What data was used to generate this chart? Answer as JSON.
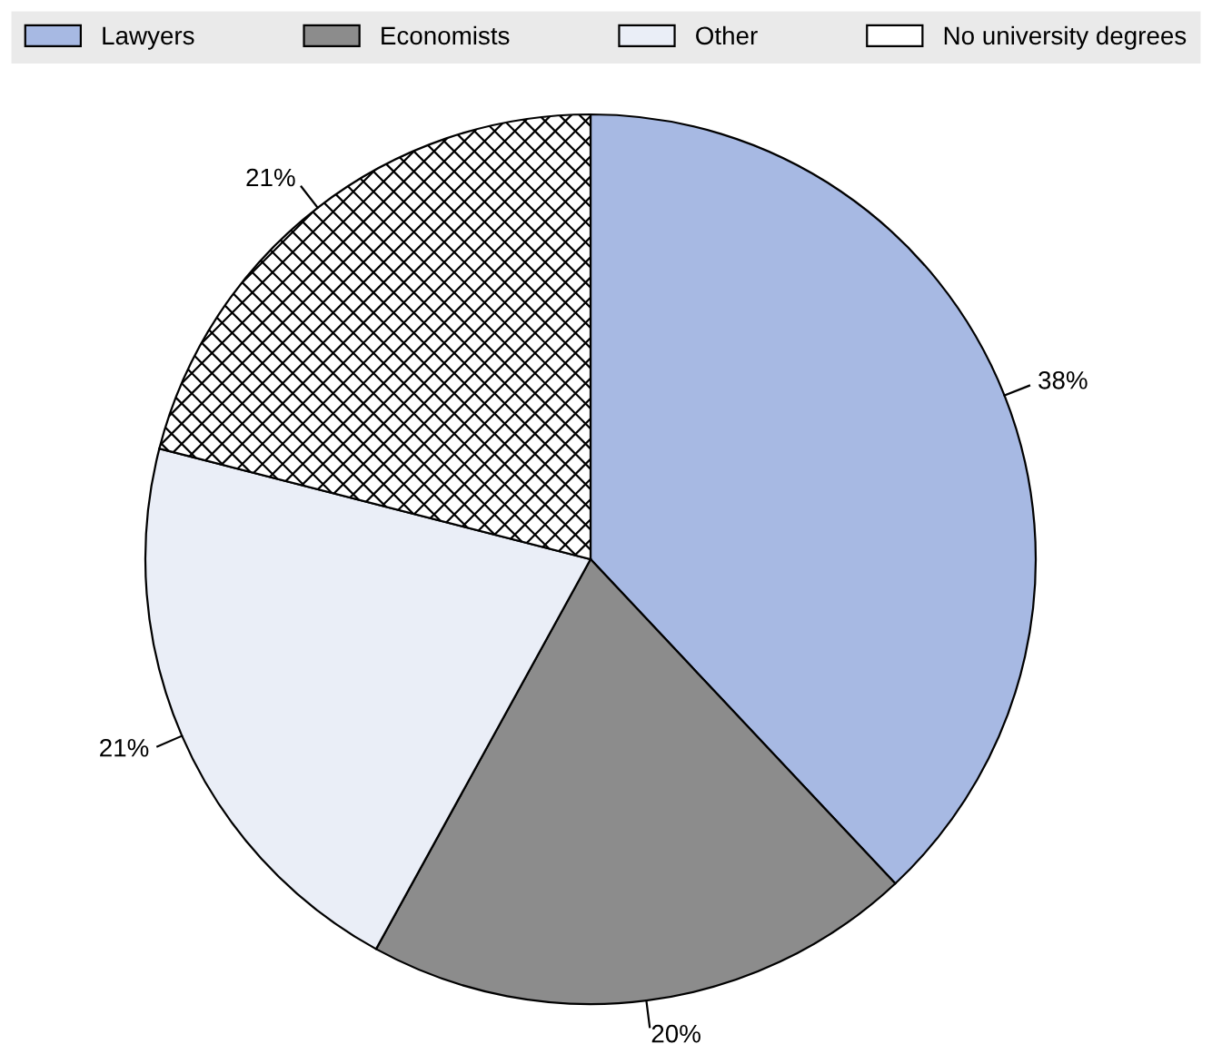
{
  "chart_data": {
    "type": "pie",
    "categories": [
      "Lawyers",
      "Economists",
      "Other",
      "No university degrees"
    ],
    "values": [
      38,
      20,
      21,
      21
    ],
    "colors": [
      "#a7b9e3",
      "#8c8c8c",
      "#eaeef7",
      "#ffffff"
    ],
    "value_labels": [
      "38%",
      "20%",
      "21%",
      "21%"
    ],
    "legend": "top"
  }
}
